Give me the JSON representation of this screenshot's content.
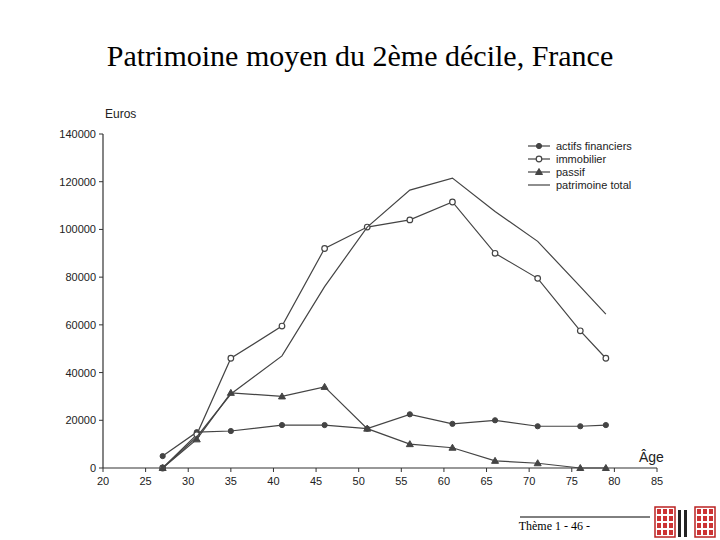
{
  "chart_data": {
    "type": "line",
    "title": "Patrimoine moyen du 2ème décile, France",
    "y_label": "Euros",
    "x_label": "Âge",
    "annotations": [
      "Thème 1 - 46 -"
    ],
    "x": [
      27,
      31,
      35,
      41,
      46,
      51,
      56,
      61,
      66,
      71,
      76,
      79
    ],
    "series": [
      {
        "name": "actifs financiers",
        "color": "#444444",
        "marker": "dot",
        "values": [
          5000,
          15000,
          15500,
          18000,
          18000,
          16500,
          22500,
          18500,
          20000,
          17500,
          17500,
          18000
        ]
      },
      {
        "name": "immobilier",
        "color": "#444444",
        "marker": "circle",
        "values": [
          0,
          14000,
          46000,
          59500,
          92000,
          101000,
          104000,
          111500,
          90000,
          79500,
          57500,
          46000
        ]
      },
      {
        "name": "passif",
        "color": "#444444",
        "marker": "triangle",
        "values": [
          0,
          12000,
          31500,
          30000,
          34000,
          16500,
          10000,
          8500,
          3000,
          2000,
          0,
          0
        ]
      },
      {
        "name": "patrimoine total",
        "color": "#444444",
        "marker": "none",
        "values": [
          0,
          13000,
          31000,
          47000,
          76000,
          101000,
          116500,
          121500,
          107500,
          95000,
          76000,
          64500
        ]
      }
    ],
    "xlim": [
      20,
      85
    ],
    "xticks": [
      20,
      25,
      30,
      35,
      40,
      45,
      50,
      55,
      60,
      65,
      70,
      75,
      80,
      85
    ],
    "ylim": [
      0,
      140000
    ],
    "yticks": [
      0,
      20000,
      40000,
      60000,
      80000,
      100000,
      120000,
      140000
    ],
    "grid": false,
    "legend": "top-right"
  }
}
